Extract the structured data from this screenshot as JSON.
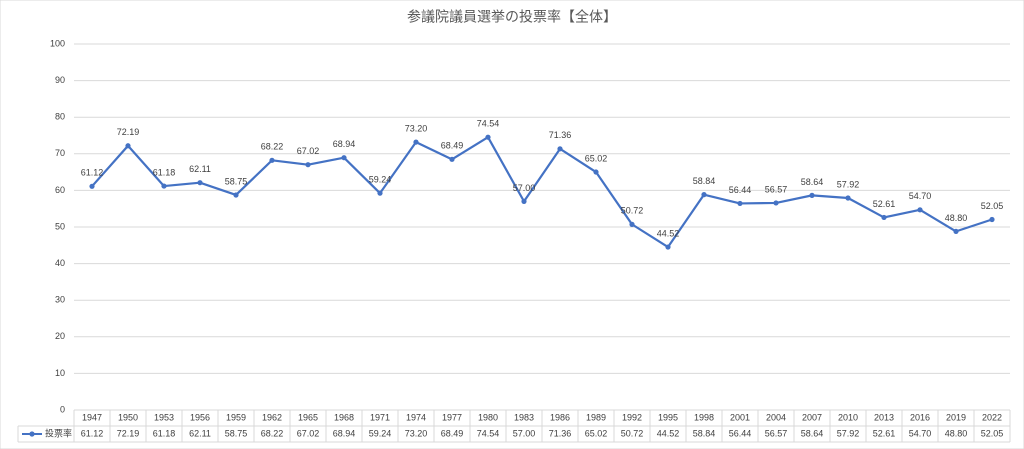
{
  "chart_data": {
    "type": "line",
    "title": "参議院議員選挙の投票率【全体】",
    "categories": [
      "1947",
      "1950",
      "1953",
      "1956",
      "1959",
      "1962",
      "1965",
      "1968",
      "1971",
      "1974",
      "1977",
      "1980",
      "1983",
      "1986",
      "1989",
      "1992",
      "1995",
      "1998",
      "2001",
      "2004",
      "2007",
      "2010",
      "2013",
      "2016",
      "2019",
      "2022"
    ],
    "series": [
      {
        "name": "投票率",
        "color": "#4472c4",
        "values": [
          61.12,
          72.19,
          61.18,
          62.11,
          58.75,
          68.22,
          67.02,
          68.94,
          59.24,
          73.2,
          68.49,
          74.54,
          57,
          71.36,
          65.02,
          50.72,
          44.52,
          58.84,
          56.44,
          56.57,
          58.64,
          57.92,
          52.61,
          54.7,
          48.8,
          52.05
        ],
        "value_labels": [
          "61.12",
          "72.19",
          "61.18",
          "62.11",
          "58.75",
          "68.22",
          "67.02",
          "68.94",
          "59.24",
          "73.20",
          "68.49",
          "74.54",
          "57.00",
          "71.36",
          "65.02",
          "50.72",
          "44.52",
          "58.84",
          "56.44",
          "56.57",
          "58.64",
          "57.92",
          "52.61",
          "54.70",
          "48.80",
          "52.05"
        ]
      }
    ],
    "ylim": [
      0,
      100
    ],
    "yticks": [
      0,
      10,
      20,
      30,
      40,
      50,
      60,
      70,
      80,
      90,
      100
    ],
    "grid": true,
    "data_table": true
  }
}
